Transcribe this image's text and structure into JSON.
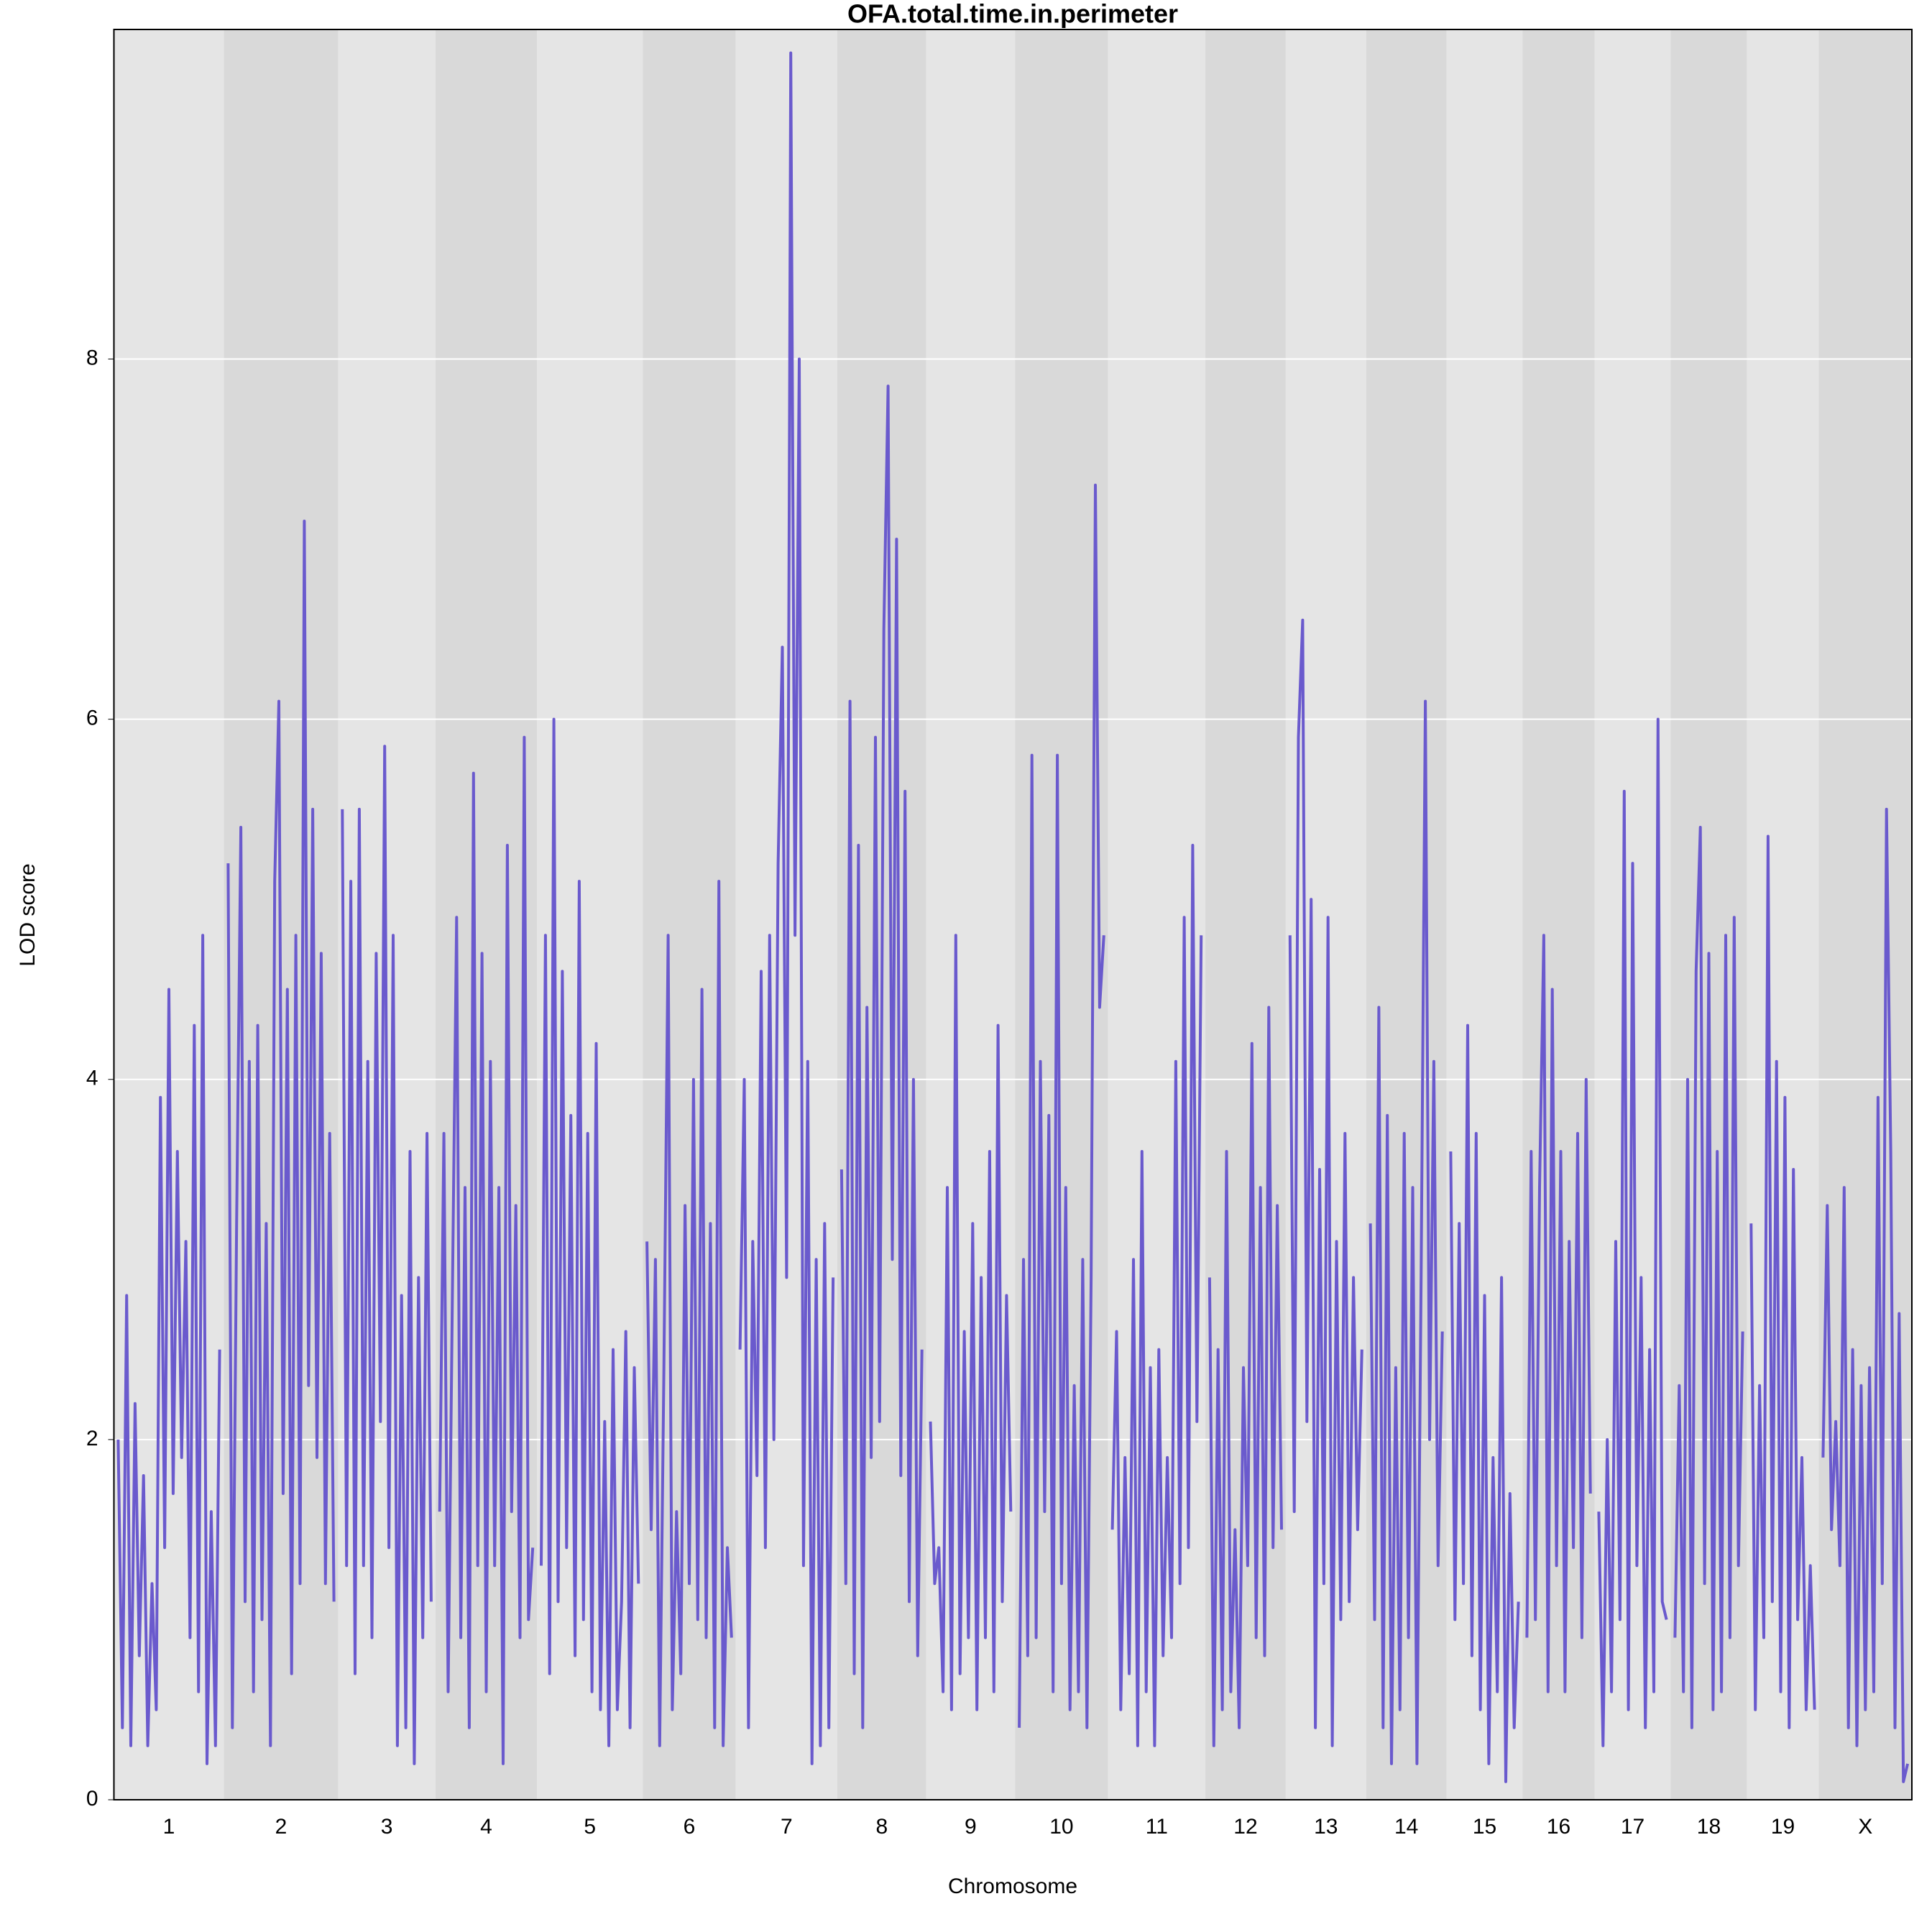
{
  "chart_data": {
    "type": "line",
    "title": "OFA.total.time.in.perimeter",
    "x_label": "Chromosome",
    "y_label": "LOD score",
    "ylim": [
      0,
      9.83
    ],
    "yticks": [
      0,
      2,
      4,
      6,
      8
    ],
    "grid": true,
    "color": "#6a5acd",
    "band_colors": [
      "#e5e5e5",
      "#d9d9d9"
    ],
    "chromosomes": [
      {
        "name": "1",
        "xlim": [
          0,
          96
        ],
        "x": [
          0,
          4,
          8,
          12,
          16,
          20,
          24,
          28,
          32,
          36,
          40,
          44,
          48,
          52,
          56,
          60,
          64,
          68,
          72,
          76,
          80,
          84,
          88,
          92,
          96
        ],
        "values": [
          2.0,
          0.4,
          2.8,
          0.3,
          2.2,
          0.8,
          1.8,
          0.3,
          1.2,
          0.5,
          3.9,
          1.4,
          4.5,
          1.7,
          3.6,
          1.9,
          3.1,
          0.9,
          4.3,
          0.6,
          4.8,
          0.2,
          1.6,
          0.3,
          2.5
        ]
      },
      {
        "name": "2",
        "xlim": [
          0,
          100
        ],
        "x": [
          0,
          4,
          8,
          12,
          16,
          20,
          24,
          28,
          32,
          36,
          40,
          44,
          48,
          52,
          56,
          60,
          64,
          68,
          72,
          76,
          80,
          84,
          88,
          92,
          96,
          100
        ],
        "values": [
          5.2,
          0.4,
          3.2,
          5.4,
          1.1,
          4.1,
          0.6,
          4.3,
          1.0,
          3.2,
          0.3,
          5.1,
          6.1,
          1.7,
          4.5,
          0.7,
          4.8,
          1.2,
          7.1,
          2.3,
          5.5,
          1.9,
          4.7,
          1.2,
          3.7,
          1.1
        ]
      },
      {
        "name": "3",
        "xlim": [
          0,
          84
        ],
        "x": [
          0,
          4,
          8,
          12,
          16,
          20,
          24,
          28,
          32,
          36,
          40,
          44,
          48,
          52,
          56,
          60,
          64,
          68,
          72,
          76,
          80,
          84
        ],
        "values": [
          5.5,
          1.3,
          5.1,
          0.7,
          5.5,
          1.3,
          4.1,
          0.9,
          4.7,
          2.1,
          5.85,
          1.4,
          4.8,
          0.3,
          2.8,
          0.4,
          3.6,
          0.2,
          2.9,
          0.9,
          3.7,
          1.1
        ]
      },
      {
        "name": "4",
        "xlim": [
          0,
          88
        ],
        "x": [
          0,
          4,
          8,
          12,
          16,
          20,
          24,
          28,
          32,
          36,
          40,
          44,
          48,
          52,
          56,
          60,
          64,
          68,
          72,
          76,
          80,
          84,
          88
        ],
        "values": [
          1.6,
          3.7,
          0.6,
          2.8,
          4.9,
          0.9,
          3.4,
          0.4,
          5.7,
          1.3,
          4.7,
          0.6,
          4.1,
          1.3,
          3.4,
          0.2,
          5.3,
          1.6,
          3.3,
          0.9,
          5.9,
          1.0,
          1.4
        ]
      },
      {
        "name": "5",
        "xlim": [
          0,
          92
        ],
        "x": [
          0,
          4,
          8,
          12,
          16,
          20,
          24,
          28,
          32,
          36,
          40,
          44,
          48,
          52,
          56,
          60,
          64,
          68,
          72,
          76,
          80,
          84,
          88,
          92
        ],
        "values": [
          1.3,
          4.8,
          0.7,
          6.0,
          1.1,
          4.6,
          1.4,
          3.8,
          0.8,
          5.1,
          1.0,
          3.7,
          0.6,
          4.2,
          0.5,
          2.1,
          0.3,
          2.5,
          0.5,
          1.1,
          2.6,
          0.4,
          2.4,
          1.2
        ]
      },
      {
        "name": "6",
        "xlim": [
          0,
          80
        ],
        "x": [
          0,
          4,
          8,
          12,
          16,
          20,
          24,
          28,
          32,
          36,
          40,
          44,
          48,
          52,
          56,
          60,
          64,
          68,
          72,
          76,
          80
        ],
        "values": [
          3.1,
          1.5,
          3.0,
          0.3,
          2.4,
          4.8,
          0.5,
          1.6,
          0.7,
          3.3,
          1.2,
          4.0,
          1.0,
          4.5,
          0.9,
          3.2,
          0.4,
          5.1,
          0.3,
          1.4,
          0.9
        ]
      },
      {
        "name": "7",
        "xlim": [
          0,
          88
        ],
        "x": [
          0,
          4,
          8,
          12,
          16,
          20,
          24,
          28,
          32,
          36,
          40,
          44,
          48,
          52,
          56,
          60,
          64,
          68,
          72,
          76,
          80,
          84,
          88
        ],
        "values": [
          2.5,
          4.0,
          0.4,
          3.1,
          1.8,
          4.6,
          1.4,
          4.8,
          2.0,
          5.2,
          6.4,
          2.9,
          9.7,
          4.8,
          8.0,
          1.3,
          4.1,
          0.2,
          3.0,
          0.3,
          3.2,
          0.4,
          2.9
        ]
      },
      {
        "name": "8",
        "xlim": [
          0,
          76
        ],
        "x": [
          0,
          4,
          8,
          12,
          16,
          20,
          24,
          28,
          32,
          36,
          40,
          44,
          48,
          52,
          56,
          60,
          64,
          68,
          72,
          76
        ],
        "values": [
          3.5,
          1.2,
          6.1,
          0.7,
          5.3,
          0.4,
          4.4,
          1.9,
          5.9,
          2.1,
          6.5,
          7.85,
          3.0,
          7.0,
          1.8,
          5.6,
          1.1,
          4.0,
          0.8,
          2.5
        ]
      },
      {
        "name": "9",
        "xlim": [
          0,
          76
        ],
        "x": [
          0,
          4,
          8,
          12,
          16,
          20,
          24,
          28,
          32,
          36,
          40,
          44,
          48,
          52,
          56,
          60,
          64,
          68,
          72,
          76
        ],
        "values": [
          2.1,
          1.2,
          1.4,
          0.6,
          3.4,
          0.5,
          4.8,
          0.7,
          2.6,
          0.9,
          3.2,
          0.5,
          2.9,
          0.9,
          3.6,
          0.6,
          4.3,
          1.1,
          2.8,
          1.6
        ]
      },
      {
        "name": "10",
        "xlim": [
          0,
          80
        ],
        "x": [
          0,
          4,
          8,
          12,
          16,
          20,
          24,
          28,
          32,
          36,
          40,
          44,
          48,
          52,
          56,
          60,
          64,
          68,
          72,
          76,
          80
        ],
        "values": [
          0.4,
          3.0,
          0.8,
          5.8,
          0.9,
          4.1,
          1.6,
          3.8,
          0.6,
          5.8,
          1.2,
          3.4,
          0.5,
          2.3,
          0.6,
          3.0,
          0.4,
          2.9,
          7.3,
          4.4,
          4.8
        ]
      },
      {
        "name": "11",
        "xlim": [
          0,
          84
        ],
        "x": [
          0,
          4,
          8,
          12,
          16,
          20,
          24,
          28,
          32,
          36,
          40,
          44,
          48,
          52,
          56,
          60,
          64,
          68,
          72,
          76,
          80,
          84
        ],
        "values": [
          1.5,
          2.6,
          0.5,
          1.9,
          0.7,
          3.0,
          0.3,
          3.6,
          0.6,
          2.4,
          0.3,
          2.5,
          0.8,
          1.9,
          0.9,
          4.1,
          1.2,
          4.9,
          1.4,
          5.3,
          2.1,
          4.8
        ]
      },
      {
        "name": "12",
        "xlim": [
          0,
          68
        ],
        "x": [
          0,
          4,
          8,
          12,
          16,
          20,
          24,
          28,
          32,
          36,
          40,
          44,
          48,
          52,
          56,
          60,
          64,
          68
        ],
        "values": [
          2.9,
          0.3,
          2.5,
          0.5,
          3.6,
          0.6,
          1.5,
          0.4,
          2.4,
          1.3,
          4.2,
          0.9,
          3.4,
          0.8,
          4.4,
          1.4,
          3.3,
          1.5
        ]
      },
      {
        "name": "13",
        "xlim": [
          0,
          68
        ],
        "x": [
          0,
          4,
          8,
          12,
          16,
          20,
          24,
          28,
          32,
          36,
          40,
          44,
          48,
          52,
          56,
          60,
          64,
          68
        ],
        "values": [
          4.8,
          1.6,
          5.9,
          6.55,
          2.1,
          5.0,
          0.4,
          3.5,
          1.2,
          4.9,
          0.3,
          3.1,
          1.0,
          3.7,
          1.1,
          2.9,
          1.5,
          2.5
        ]
      },
      {
        "name": "14",
        "xlim": [
          0,
          68
        ],
        "x": [
          0,
          4,
          8,
          12,
          16,
          20,
          24,
          28,
          32,
          36,
          40,
          44,
          48,
          52,
          56,
          60,
          64,
          68
        ],
        "values": [
          3.2,
          1.0,
          4.4,
          0.4,
          3.8,
          0.2,
          2.4,
          0.5,
          3.7,
          0.9,
          3.4,
          0.2,
          2.9,
          6.1,
          2.0,
          4.1,
          1.3,
          2.6
        ]
      },
      {
        "name": "15",
        "xlim": [
          0,
          64
        ],
        "x": [
          0,
          4,
          8,
          12,
          16,
          20,
          24,
          28,
          32,
          36,
          40,
          44,
          48,
          52,
          56,
          60,
          64
        ],
        "values": [
          3.6,
          1.0,
          3.2,
          1.2,
          4.3,
          0.8,
          3.7,
          0.5,
          2.8,
          0.2,
          1.9,
          0.6,
          2.9,
          0.1,
          1.7,
          0.4,
          1.1
        ]
      },
      {
        "name": "16",
        "xlim": [
          0,
          60
        ],
        "x": [
          0,
          4,
          8,
          12,
          16,
          20,
          24,
          28,
          32,
          36,
          40,
          44,
          48,
          52,
          56,
          60
        ],
        "values": [
          0.9,
          3.6,
          1.0,
          3.4,
          4.8,
          0.6,
          4.5,
          1.3,
          3.6,
          0.6,
          3.1,
          1.4,
          3.7,
          0.9,
          4.0,
          1.7
        ]
      },
      {
        "name": "17",
        "xlim": [
          0,
          64
        ],
        "x": [
          0,
          4,
          8,
          12,
          16,
          20,
          24,
          28,
          32,
          36,
          40,
          44,
          48,
          52,
          56,
          60,
          64
        ],
        "values": [
          1.6,
          0.3,
          2.0,
          0.6,
          3.1,
          1.0,
          5.6,
          0.5,
          5.2,
          1.3,
          2.9,
          0.4,
          2.5,
          0.6,
          6.0,
          1.1,
          1.0
        ]
      },
      {
        "name": "18",
        "xlim": [
          0,
          64
        ],
        "x": [
          0,
          4,
          8,
          12,
          16,
          20,
          24,
          28,
          32,
          36,
          40,
          44,
          48,
          52,
          56,
          60,
          64
        ],
        "values": [
          0.9,
          2.3,
          0.6,
          4.0,
          0.4,
          4.6,
          5.4,
          1.2,
          4.7,
          0.5,
          3.6,
          0.6,
          4.8,
          0.9,
          4.9,
          1.3,
          2.6
        ]
      },
      {
        "name": "19",
        "xlim": [
          0,
          60
        ],
        "x": [
          0,
          4,
          8,
          12,
          16,
          20,
          24,
          28,
          32,
          36,
          40,
          44,
          48,
          52,
          56,
          60
        ],
        "values": [
          3.2,
          0.5,
          2.3,
          0.9,
          5.35,
          1.1,
          4.1,
          0.6,
          3.9,
          0.4,
          3.5,
          1.0,
          1.9,
          0.5,
          1.3,
          0.5
        ]
      },
      {
        "name": "X",
        "xlim": [
          0,
          80
        ],
        "x": [
          0,
          4,
          8,
          12,
          16,
          20,
          24,
          28,
          32,
          36,
          40,
          44,
          48,
          52,
          56,
          60,
          64,
          68,
          72,
          76,
          80
        ],
        "values": [
          1.9,
          3.3,
          1.5,
          2.1,
          1.3,
          3.4,
          0.4,
          2.5,
          0.3,
          2.3,
          0.5,
          2.4,
          0.6,
          3.9,
          1.2,
          5.5,
          3.6,
          0.4,
          2.7,
          0.1,
          0.2
        ]
      }
    ]
  }
}
